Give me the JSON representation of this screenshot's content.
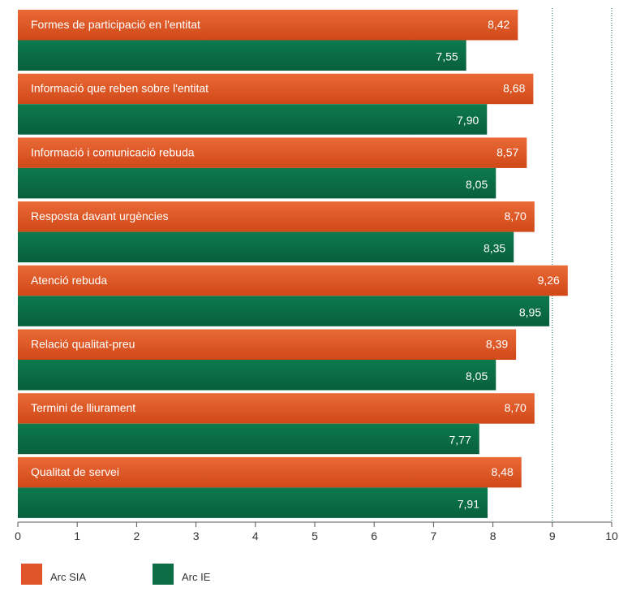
{
  "chart_data": {
    "type": "bar",
    "orientation": "horizontal",
    "categories": [
      "Formes de participació en l'entitat",
      "Informació que reben sobre l'entitat",
      "Informació i comunicació rebuda",
      "Resposta davant urgències",
      "Atenció rebuda",
      "Relació qualitat-preu",
      "Termini de lliurament",
      "Qualitat de servei"
    ],
    "series": [
      {
        "name": "Arc SIA",
        "color": "#e0552a",
        "values": [
          8.42,
          8.68,
          8.57,
          8.7,
          9.26,
          8.39,
          8.7,
          8.48
        ],
        "labels": [
          "8,42",
          "8,68",
          "8,57",
          "8,70",
          "9,26",
          "8,39",
          "8,70",
          "8,48"
        ]
      },
      {
        "name": "Arc IE",
        "color": "#0b6e45",
        "values": [
          7.55,
          7.9,
          8.05,
          8.35,
          8.95,
          8.05,
          7.77,
          7.91
        ],
        "labels": [
          "7,55",
          "7,90",
          "8,05",
          "8,35",
          "8,95",
          "8,05",
          "7,77",
          "7,91"
        ]
      }
    ],
    "xlim": [
      0,
      10
    ],
    "x_ticks": [
      "0",
      "1",
      "2",
      "3",
      "4",
      "5",
      "6",
      "7",
      "8",
      "9",
      "10"
    ],
    "grid": "vertical dotted lines at 9 and 10",
    "legend_position": "bottom-left"
  }
}
